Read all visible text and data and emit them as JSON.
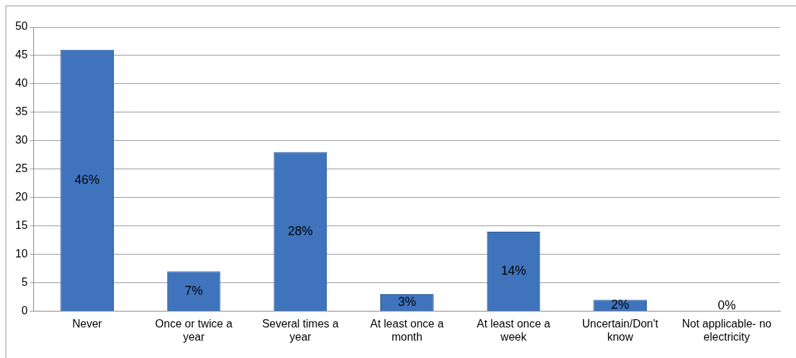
{
  "chart_data": {
    "type": "bar",
    "categories": [
      "Never",
      "Once or twice a year",
      "Several times a year",
      "At least once a month",
      "At least once a week",
      "Uncertain/Don't know",
      "Not applicable- no electricity"
    ],
    "values": [
      46,
      7,
      28,
      3,
      14,
      2,
      0
    ],
    "value_labels": [
      "46%",
      "7%",
      "28%",
      "3%",
      "14%",
      "2%",
      "0%"
    ],
    "color": "#3f74bd",
    "ylim": [
      0,
      50
    ],
    "yticks": [
      0,
      5,
      10,
      15,
      20,
      25,
      30,
      35,
      40,
      45,
      50
    ],
    "grid": "y",
    "legend": false
  }
}
